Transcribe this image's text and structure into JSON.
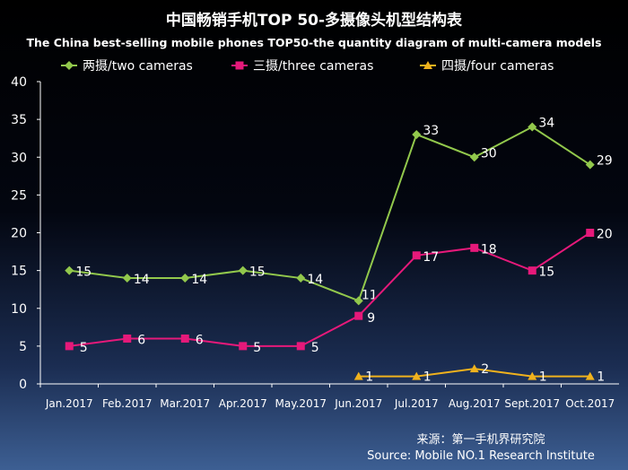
{
  "chart_data": {
    "type": "line",
    "title": "中国畅销手机TOP 50-多摄像头机型结构表",
    "subtitle": "The China best-selling mobile phones TOP50-the quantity diagram of multi-camera models",
    "xlabel": "",
    "ylabel": "",
    "categories": [
      "Jan.2017",
      "Feb.2017",
      "Mar.2017",
      "Apr.2017",
      "May.2017",
      "Jun.2017",
      "Jul.2017",
      "Aug.2017",
      "Sept.2017",
      "Oct.2017"
    ],
    "ylim": [
      0,
      40
    ],
    "yticks": [
      0,
      5,
      10,
      15,
      20,
      25,
      30,
      35,
      40
    ],
    "grid": false,
    "legend_position": "top",
    "series": [
      {
        "name": "两摄/two cameras",
        "color": "#92c84c",
        "marker": "diamond",
        "values": [
          15,
          14,
          14,
          15,
          14,
          11,
          33,
          30,
          34,
          29
        ]
      },
      {
        "name": "三摄/three cameras",
        "color": "#e6197a",
        "marker": "square",
        "values": [
          5,
          6,
          6,
          5,
          5,
          9,
          17,
          18,
          15,
          20
        ]
      },
      {
        "name": "四摄/four cameras",
        "color": "#f0b21d",
        "marker": "triangle",
        "values": [
          null,
          null,
          null,
          null,
          null,
          1,
          1,
          2,
          1,
          1
        ]
      }
    ]
  },
  "source": {
    "cn": "来源：第一手机界研究院",
    "en": "Source: Mobile NO.1 Research Institute"
  }
}
